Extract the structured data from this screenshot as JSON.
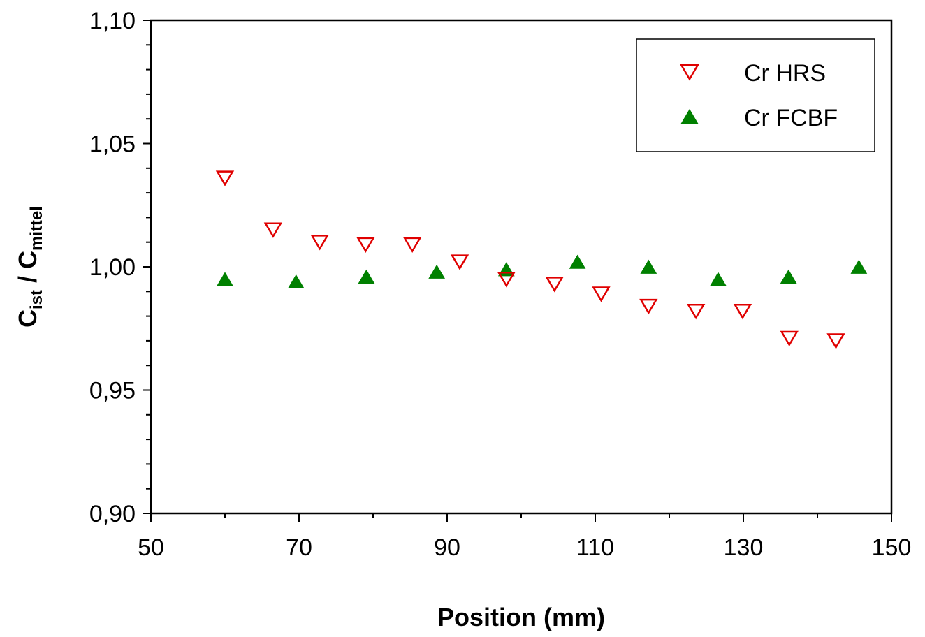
{
  "chart_data": {
    "type": "scatter",
    "xlabel": "Position (mm)",
    "ylabel": {
      "c1": "C",
      "s1": "ist",
      "mid": " / C",
      "s2": "mittel"
    },
    "xlim": [
      50,
      150
    ],
    "ylim": [
      0.9,
      1.1
    ],
    "x_ticks": [
      50,
      70,
      90,
      110,
      130,
      150
    ],
    "x_tick_labels": [
      "50",
      "70",
      "90",
      "110",
      "130",
      "150"
    ],
    "y_ticks": [
      0.9,
      0.95,
      1.0,
      1.05,
      1.1
    ],
    "y_tick_labels": [
      "0,90",
      "0,95",
      "1,00",
      "1,05",
      "1,10"
    ],
    "legend_position": "top-right",
    "grid": false,
    "series": [
      {
        "name": "Cr HRS",
        "marker": "triangle-down-open",
        "color": "#e00000",
        "x": [
          60.0,
          66.5,
          72.8,
          79.0,
          85.3,
          91.7,
          98.0,
          104.5,
          110.8,
          117.2,
          123.6,
          129.9,
          136.2,
          142.5
        ],
        "y": [
          1.036,
          1.015,
          1.01,
          1.009,
          1.009,
          1.002,
          0.995,
          0.993,
          0.989,
          0.984,
          0.982,
          0.982,
          0.971,
          0.97
        ]
      },
      {
        "name": "Cr FCBF",
        "marker": "triangle-up-filled",
        "color": "#008000",
        "x": [
          60.0,
          69.6,
          79.1,
          88.6,
          98.0,
          107.6,
          117.2,
          126.6,
          136.1,
          145.6
        ],
        "y": [
          0.995,
          0.994,
          0.996,
          0.998,
          0.999,
          1.002,
          1.0,
          0.995,
          0.996,
          1.0
        ]
      }
    ]
  }
}
